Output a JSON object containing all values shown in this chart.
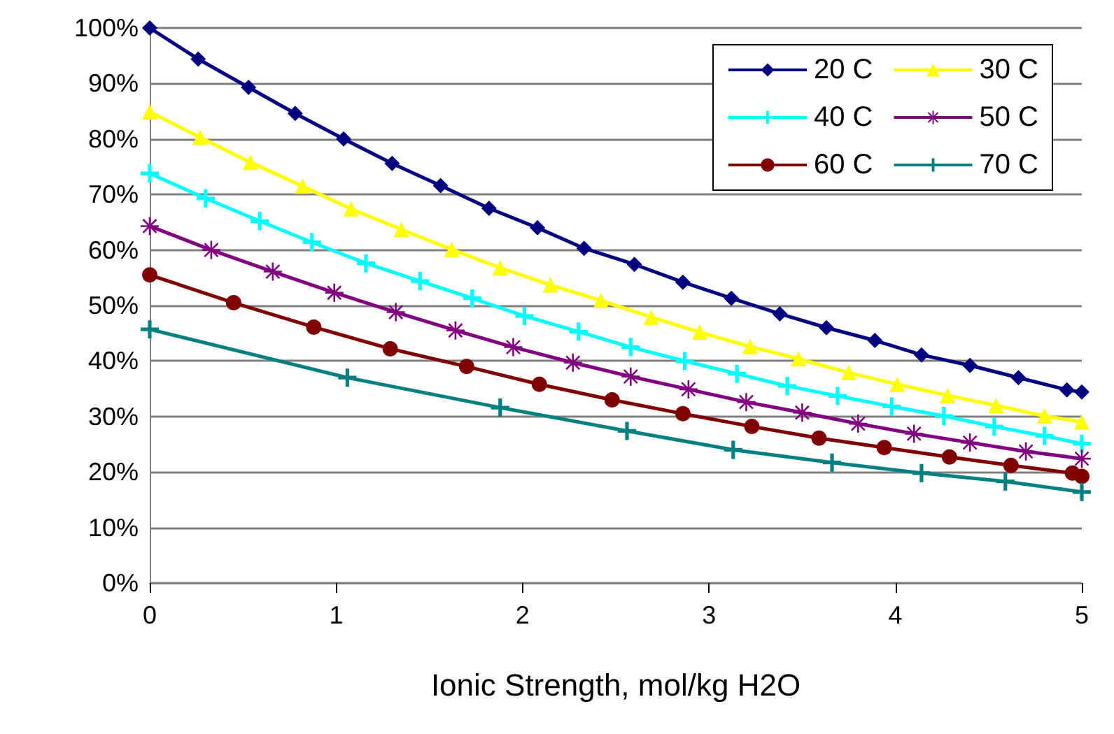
{
  "chart_data": {
    "type": "line",
    "xlabel": "Ionic Strength, mol/kg H2O",
    "xlim": [
      0,
      5
    ],
    "xticks": [
      0,
      1,
      2,
      3,
      4,
      5
    ],
    "ylim": [
      0,
      100
    ],
    "yticks": [
      {
        "value": 0,
        "label": "0%"
      },
      {
        "value": 10,
        "label": "10%"
      },
      {
        "value": 20,
        "label": "20%"
      },
      {
        "value": 30,
        "label": "30%"
      },
      {
        "value": 40,
        "label": "40%"
      },
      {
        "value": 50,
        "label": "50%"
      },
      {
        "value": 60,
        "label": "60%"
      },
      {
        "value": 70,
        "label": "70%"
      },
      {
        "value": 80,
        "label": "80%"
      },
      {
        "value": 90,
        "label": "90%"
      },
      {
        "value": 100,
        "label": "100%"
      }
    ],
    "grid": "y",
    "legend": "top right",
    "line_style": "solid",
    "series": [
      {
        "name": "20 C",
        "color": "#000080",
        "marker": "diamond",
        "x": [
          0,
          0.26,
          0.53,
          0.78,
          1.04,
          1.3,
          1.56,
          1.82,
          2.08,
          2.33,
          2.6,
          2.86,
          3.12,
          3.38,
          3.63,
          3.89,
          4.14,
          4.4,
          4.66,
          4.92,
          5
        ],
        "values": [
          100,
          94.4,
          89.3,
          84.6,
          80.0,
          75.6,
          71.6,
          67.5,
          64.0,
          60.3,
          57.4,
          54.2,
          51.3,
          48.5,
          46.0,
          43.7,
          41.1,
          39.2,
          37.0,
          34.8,
          34.4
        ]
      },
      {
        "name": "30 C",
        "color": "#ffff00",
        "marker": "triangle",
        "x": [
          0,
          0.27,
          0.54,
          0.82,
          1.08,
          1.35,
          1.62,
          1.88,
          2.15,
          2.42,
          2.69,
          2.95,
          3.22,
          3.48,
          3.75,
          4.01,
          4.28,
          4.54,
          4.8,
          5
        ],
        "values": [
          84.9,
          80.3,
          75.8,
          71.5,
          67.4,
          63.7,
          60.1,
          56.8,
          53.7,
          50.9,
          47.9,
          45.2,
          42.6,
          40.4,
          37.9,
          35.8,
          33.8,
          32.0,
          30.1,
          29.0
        ]
      },
      {
        "name": "40 C",
        "color": "#00ffff",
        "marker": "cross",
        "x": [
          0,
          0.3,
          0.59,
          0.87,
          1.16,
          1.45,
          1.73,
          2.01,
          2.3,
          2.58,
          2.87,
          3.15,
          3.42,
          3.69,
          3.98,
          4.26,
          4.53,
          4.8,
          5
        ],
        "values": [
          73.8,
          69.3,
          65.2,
          61.4,
          57.6,
          54.4,
          51.3,
          48.1,
          45.3,
          42.5,
          40.0,
          37.7,
          35.5,
          33.7,
          31.8,
          30.1,
          28.2,
          26.5,
          25.1
        ]
      },
      {
        "name": "50 C",
        "color": "#800080",
        "marker": "star",
        "x": [
          0,
          0.33,
          0.66,
          0.99,
          1.32,
          1.64,
          1.95,
          2.27,
          2.58,
          2.89,
          3.2,
          3.5,
          3.8,
          4.1,
          4.4,
          4.7,
          5
        ],
        "values": [
          64.3,
          60.0,
          56.1,
          52.3,
          48.8,
          45.5,
          42.5,
          39.7,
          37.2,
          34.9,
          32.6,
          30.7,
          28.7,
          26.9,
          25.3,
          23.7,
          22.4
        ]
      },
      {
        "name": "60 C",
        "color": "#800000",
        "marker": "circle",
        "x": [
          0,
          0.45,
          0.88,
          1.29,
          1.7,
          2.09,
          2.48,
          2.86,
          3.23,
          3.59,
          3.94,
          4.29,
          4.62,
          4.95,
          5
        ],
        "values": [
          55.5,
          50.5,
          46.1,
          42.2,
          39.0,
          35.8,
          33.0,
          30.5,
          28.2,
          26.1,
          24.4,
          22.7,
          21.2,
          19.8,
          19.2
        ]
      },
      {
        "name": "70 C",
        "color": "#008080",
        "marker": "cross",
        "x": [
          0,
          1.06,
          1.88,
          2.56,
          3.13,
          3.66,
          4.14,
          4.59,
          5
        ],
        "values": [
          45.7,
          37.0,
          31.6,
          27.4,
          24.0,
          21.7,
          19.8,
          18.3,
          16.4
        ]
      }
    ]
  }
}
